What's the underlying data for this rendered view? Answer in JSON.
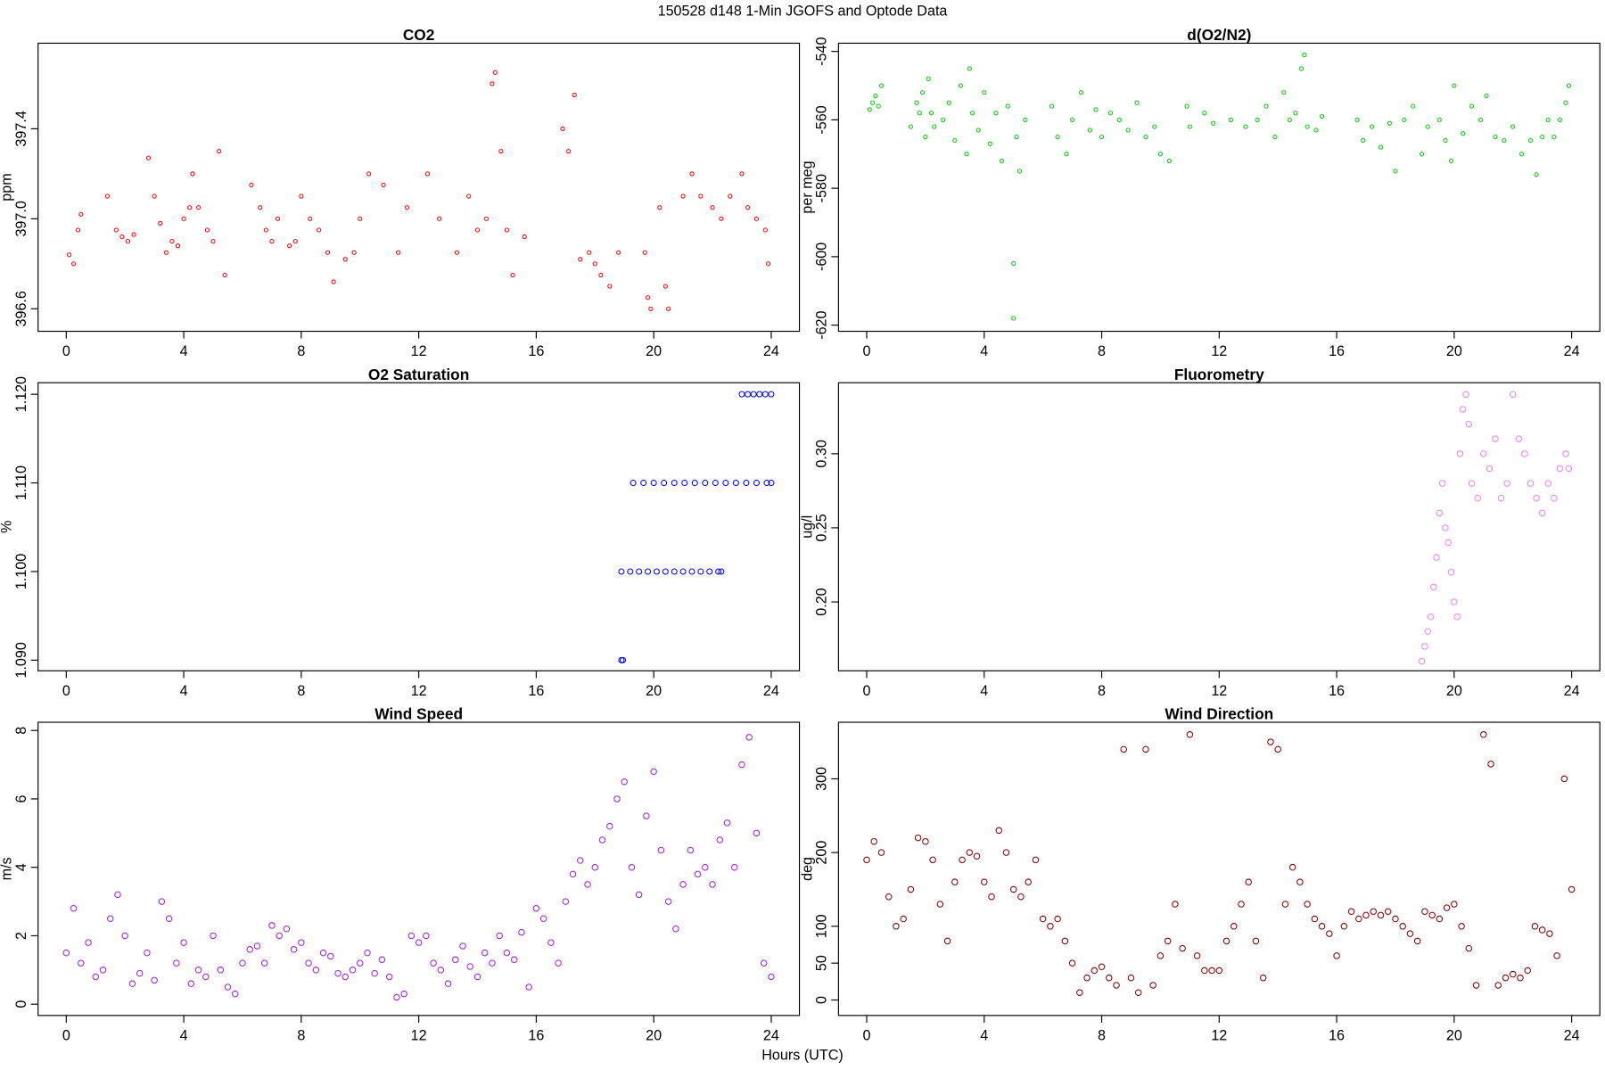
{
  "title": "150528   d148   1-Min  JGOFS and Optode Data",
  "x_label": "Hours (UTC)",
  "chart_data": [
    {
      "type": "scatter",
      "title": "CO2",
      "y_label": "ppm",
      "color": "#ff0000",
      "xlim": [
        -0.96,
        24.96
      ],
      "xticks": [
        0,
        4,
        8,
        12,
        16,
        20,
        24
      ],
      "ylim": [
        396.5,
        397.78
      ],
      "yticks": [
        396.6,
        {
          "value": 397.0,
          "label": "397.0"
        },
        397.4
      ],
      "x": [
        0.1,
        0.25,
        0.4,
        0.5,
        1.4,
        1.7,
        1.9,
        2.1,
        2.3,
        2.8,
        3.0,
        3.2,
        3.4,
        3.6,
        3.8,
        4.0,
        4.2,
        4.3,
        4.5,
        4.8,
        5.0,
        5.2,
        5.4,
        6.3,
        6.6,
        6.8,
        7.0,
        7.2,
        7.6,
        7.8,
        8.0,
        8.3,
        8.6,
        8.9,
        9.1,
        9.5,
        9.8,
        10.0,
        10.3,
        10.8,
        11.3,
        11.6,
        12.3,
        12.7,
        13.3,
        13.7,
        14.0,
        14.3,
        14.5,
        14.6,
        14.8,
        15.0,
        15.2,
        15.6,
        16.9,
        17.1,
        17.3,
        17.5,
        17.8,
        18.0,
        18.2,
        18.5,
        18.8,
        19.7,
        19.8,
        19.9,
        20.2,
        20.4,
        20.5,
        21.0,
        21.3,
        21.6,
        22.0,
        22.3,
        22.6,
        23.0,
        23.2,
        23.5,
        23.8,
        23.9
      ],
      "values": [
        396.84,
        396.8,
        396.95,
        397.02,
        397.1,
        396.95,
        396.92,
        396.9,
        396.93,
        397.27,
        397.1,
        396.98,
        396.85,
        396.9,
        396.88,
        397.0,
        397.05,
        397.2,
        397.05,
        396.95,
        396.9,
        397.3,
        396.75,
        397.15,
        397.05,
        396.95,
        396.9,
        397.0,
        396.88,
        396.9,
        397.1,
        397.0,
        396.95,
        396.85,
        396.72,
        396.82,
        396.85,
        397.0,
        397.2,
        397.15,
        396.85,
        397.05,
        397.2,
        397.0,
        396.85,
        397.1,
        396.95,
        397.0,
        397.6,
        397.65,
        397.3,
        396.95,
        396.75,
        396.92,
        397.4,
        397.3,
        397.55,
        396.82,
        396.85,
        396.8,
        396.75,
        396.7,
        396.85,
        396.85,
        396.65,
        396.6,
        397.05,
        396.7,
        396.6,
        397.1,
        397.2,
        397.1,
        397.05,
        397.0,
        397.1,
        397.2,
        397.05,
        397.0,
        396.95,
        396.8
      ]
    },
    {
      "type": "scatter",
      "title": "d(O2/N2)",
      "y_label": "per meg",
      "color": "#00cc00",
      "xlim": [
        -0.96,
        24.96
      ],
      "xticks": [
        0,
        4,
        8,
        12,
        16,
        20,
        24
      ],
      "ylim": [
        -621.8,
        -537.6
      ],
      "yticks": [
        -620,
        -600,
        -580,
        -560,
        -540
      ],
      "x": [
        0.1,
        0.2,
        0.3,
        0.4,
        0.5,
        1.5,
        1.7,
        1.8,
        1.9,
        2.0,
        2.1,
        2.2,
        2.3,
        2.6,
        2.8,
        3.0,
        3.2,
        3.4,
        3.5,
        3.6,
        3.8,
        4.0,
        4.2,
        4.4,
        4.6,
        4.8,
        5.0,
        5.0,
        5.1,
        5.2,
        5.4,
        6.3,
        6.5,
        6.8,
        7.0,
        7.3,
        7.6,
        7.8,
        8.0,
        8.3,
        8.6,
        8.9,
        9.2,
        9.5,
        9.8,
        10.0,
        10.3,
        10.9,
        11.0,
        11.5,
        11.8,
        12.4,
        12.9,
        13.3,
        13.6,
        13.9,
        14.2,
        14.4,
        14.6,
        14.8,
        14.9,
        15.0,
        15.3,
        15.5,
        16.7,
        16.9,
        17.2,
        17.5,
        17.8,
        18.0,
        18.3,
        18.6,
        18.9,
        19.1,
        19.5,
        19.7,
        19.9,
        20.0,
        20.3,
        20.6,
        20.9,
        21.1,
        21.4,
        21.7,
        22.0,
        22.3,
        22.6,
        22.8,
        23.0,
        23.2,
        23.4,
        23.6,
        23.8,
        23.9
      ],
      "values": [
        -557,
        -555,
        -553,
        -556,
        -550,
        -562,
        -555,
        -558,
        -552,
        -565,
        -548,
        -558,
        -562,
        -560,
        -555,
        -566,
        -550,
        -570,
        -545,
        -558,
        -563,
        -552,
        -567,
        -558,
        -572,
        -556,
        -602,
        -618,
        -565,
        -575,
        -560,
        -556,
        -565,
        -570,
        -560,
        -552,
        -563,
        -557,
        -565,
        -558,
        -560,
        -563,
        -555,
        -565,
        -562,
        -570,
        -572,
        -556,
        -562,
        -558,
        -561,
        -560,
        -562,
        -560,
        -556,
        -565,
        -552,
        -560,
        -558,
        -545,
        -541,
        -562,
        -563,
        -559,
        -560,
        -566,
        -562,
        -568,
        -561,
        -575,
        -560,
        -556,
        -570,
        -562,
        -560,
        -566,
        -572,
        -550,
        -564,
        -556,
        -560,
        -553,
        -565,
        -566,
        -562,
        -570,
        -566,
        -576,
        -565,
        -560,
        -565,
        -560,
        -555,
        -550
      ]
    },
    {
      "type": "scatter",
      "title": "O2 Saturation",
      "y_label": "%",
      "color": "#0000ff",
      "xlim": [
        -0.96,
        24.96
      ],
      "xticks": [
        0,
        4,
        8,
        12,
        16,
        20,
        24
      ],
      "ylim": [
        1.0888,
        1.1213
      ],
      "yticks": [
        {
          "value": 1.09,
          "label": "1.090"
        },
        {
          "value": 1.1,
          "label": "1.100"
        },
        {
          "value": 1.11,
          "label": "1.110"
        },
        {
          "value": 1.12,
          "label": "1.120"
        }
      ],
      "x": [
        18.9,
        18.95,
        18.9,
        19.2,
        19.5,
        19.8,
        20.1,
        20.4,
        20.7,
        21.0,
        21.3,
        21.6,
        21.9,
        22.2,
        22.3,
        19.3,
        19.65,
        20.0,
        20.35,
        20.7,
        21.05,
        21.4,
        21.75,
        22.1,
        22.45,
        22.8,
        23.15,
        23.5,
        23.85,
        24.0,
        23.0,
        23.2,
        23.4,
        23.6,
        23.8,
        24.0
      ],
      "values": [
        1.09,
        1.09,
        1.1,
        1.1,
        1.1,
        1.1,
        1.1,
        1.1,
        1.1,
        1.1,
        1.1,
        1.1,
        1.1,
        1.1,
        1.1,
        1.11,
        1.11,
        1.11,
        1.11,
        1.11,
        1.11,
        1.11,
        1.11,
        1.11,
        1.11,
        1.11,
        1.11,
        1.11,
        1.11,
        1.11,
        1.12,
        1.12,
        1.12,
        1.12,
        1.12,
        1.12
      ]
    },
    {
      "type": "scatter",
      "title": "Fluorometry",
      "y_label": "ug/l",
      "color": "#ee82ee",
      "xlim": [
        -0.96,
        24.96
      ],
      "xticks": [
        0,
        4,
        8,
        12,
        16,
        20,
        24
      ],
      "ylim": [
        0.1535,
        0.3479
      ],
      "yticks": [
        {
          "value": 0.2,
          "label": "0.20"
        },
        {
          "value": 0.25,
          "label": "0.25"
        },
        {
          "value": 0.3,
          "label": "0.30"
        }
      ],
      "x": [
        18.9,
        19.0,
        19.1,
        19.2,
        19.3,
        19.4,
        19.5,
        19.6,
        19.7,
        19.8,
        19.9,
        20.0,
        20.1,
        20.2,
        20.3,
        20.4,
        20.5,
        20.6,
        20.8,
        21.0,
        21.2,
        21.4,
        21.6,
        21.8,
        22.0,
        22.2,
        22.4,
        22.6,
        22.8,
        23.0,
        23.2,
        23.4,
        23.6,
        23.8,
        23.9
      ],
      "values": [
        0.16,
        0.17,
        0.18,
        0.19,
        0.21,
        0.23,
        0.26,
        0.28,
        0.25,
        0.24,
        0.22,
        0.2,
        0.19,
        0.3,
        0.33,
        0.34,
        0.32,
        0.28,
        0.27,
        0.3,
        0.29,
        0.31,
        0.27,
        0.28,
        0.34,
        0.31,
        0.3,
        0.28,
        0.27,
        0.26,
        0.28,
        0.27,
        0.29,
        0.3,
        0.29
      ]
    },
    {
      "type": "scatter",
      "title": "Wind Speed",
      "y_label": "m/s",
      "color": "#a020f0",
      "xlim": [
        -0.96,
        24.96
      ],
      "xticks": [
        0,
        4,
        8,
        12,
        16,
        20,
        24
      ],
      "ylim": [
        -0.33,
        8.24
      ],
      "yticks": [
        0,
        2,
        4,
        6,
        8
      ],
      "x": [
        0,
        0.25,
        0.5,
        0.75,
        1.0,
        1.25,
        1.5,
        1.75,
        2.0,
        2.25,
        2.5,
        2.75,
        3.0,
        3.25,
        3.5,
        3.75,
        4.0,
        4.25,
        4.5,
        4.75,
        5.0,
        5.25,
        5.5,
        5.75,
        6.0,
        6.25,
        6.5,
        6.75,
        7.0,
        7.25,
        7.5,
        7.75,
        8.0,
        8.25,
        8.5,
        8.75,
        9.0,
        9.25,
        9.5,
        9.75,
        10.0,
        10.25,
        10.5,
        10.75,
        11.0,
        11.25,
        11.5,
        11.75,
        12.0,
        12.25,
        12.5,
        12.75,
        13.0,
        13.25,
        13.5,
        13.75,
        14.0,
        14.25,
        14.5,
        14.75,
        15.0,
        15.25,
        15.5,
        15.75,
        16.0,
        16.25,
        16.5,
        16.75,
        17.0,
        17.25,
        17.5,
        17.75,
        18.0,
        18.25,
        18.5,
        18.75,
        19.0,
        19.25,
        19.5,
        19.75,
        20.0,
        20.25,
        20.5,
        20.75,
        21.0,
        21.25,
        21.5,
        21.75,
        22.0,
        22.25,
        22.5,
        22.75,
        23.0,
        23.25,
        23.5,
        23.75,
        24.0
      ],
      "values": [
        1.5,
        2.8,
        1.2,
        1.8,
        0.8,
        1.0,
        2.5,
        3.2,
        2.0,
        0.6,
        0.9,
        1.5,
        0.7,
        3.0,
        2.5,
        1.2,
        1.8,
        0.6,
        1.0,
        0.8,
        2.0,
        1.0,
        0.5,
        0.3,
        1.2,
        1.6,
        1.7,
        1.2,
        2.3,
        2.0,
        2.2,
        1.6,
        1.8,
        1.2,
        1.0,
        1.5,
        1.4,
        0.9,
        0.8,
        1.0,
        1.2,
        1.5,
        0.9,
        1.3,
        0.8,
        0.2,
        0.3,
        2.0,
        1.8,
        2.0,
        1.2,
        1.0,
        0.6,
        1.3,
        1.7,
        1.1,
        0.8,
        1.5,
        1.2,
        2.0,
        1.5,
        1.3,
        2.1,
        0.5,
        2.8,
        2.5,
        1.8,
        1.2,
        3.0,
        3.8,
        4.2,
        3.5,
        4.0,
        4.8,
        5.2,
        6.0,
        6.5,
        4.0,
        3.2,
        5.5,
        6.8,
        4.5,
        3.0,
        2.2,
        3.5,
        4.5,
        3.8,
        4.0,
        3.5,
        4.8,
        5.3,
        4.0,
        7.0,
        7.8,
        5.0,
        1.2,
        0.8
      ]
    },
    {
      "type": "scatter",
      "title": "Wind Direction",
      "y_label": "deg",
      "color": "#8b0000",
      "xlim": [
        -0.96,
        24.96
      ],
      "xticks": [
        0,
        4,
        8,
        12,
        16,
        20,
        24
      ],
      "ylim": [
        -21,
        376.7
      ],
      "yticks": [
        0,
        50,
        100,
        200,
        300
      ],
      "x": [
        0,
        0.25,
        0.5,
        0.75,
        1.0,
        1.25,
        1.5,
        1.75,
        2.0,
        2.25,
        2.5,
        2.75,
        3.0,
        3.25,
        3.5,
        3.75,
        4.0,
        4.25,
        4.5,
        4.75,
        5.0,
        5.25,
        5.5,
        5.75,
        6.0,
        6.25,
        6.5,
        6.75,
        7.0,
        7.25,
        7.5,
        7.75,
        8.0,
        8.25,
        8.5,
        8.75,
        9.0,
        9.25,
        9.5,
        9.75,
        10.0,
        10.25,
        10.5,
        10.75,
        11.0,
        11.25,
        11.5,
        11.75,
        12.0,
        12.25,
        12.5,
        12.75,
        13.0,
        13.25,
        13.5,
        13.75,
        14.0,
        14.25,
        14.5,
        14.75,
        15.0,
        15.25,
        15.5,
        15.75,
        16.0,
        16.25,
        16.5,
        16.75,
        17.0,
        17.25,
        17.5,
        17.75,
        18.0,
        18.25,
        18.5,
        18.75,
        19.0,
        19.25,
        19.5,
        19.75,
        20.0,
        20.25,
        20.5,
        20.75,
        21.0,
        21.25,
        21.5,
        21.75,
        22.0,
        22.25,
        22.5,
        22.75,
        23.0,
        23.25,
        23.5,
        23.75,
        24.0
      ],
      "values": [
        190,
        215,
        200,
        140,
        100,
        110,
        150,
        220,
        215,
        190,
        130,
        80,
        160,
        190,
        200,
        195,
        160,
        140,
        230,
        200,
        150,
        140,
        160,
        190,
        110,
        100,
        110,
        80,
        50,
        10,
        30,
        40,
        45,
        30,
        20,
        340,
        30,
        10,
        340,
        20,
        60,
        80,
        130,
        70,
        360,
        60,
        40,
        40,
        40,
        80,
        100,
        130,
        160,
        80,
        30,
        350,
        340,
        130,
        180,
        160,
        130,
        110,
        100,
        90,
        60,
        100,
        120,
        110,
        115,
        120,
        115,
        120,
        110,
        100,
        90,
        80,
        120,
        115,
        110,
        125,
        130,
        100,
        70,
        20,
        360,
        320,
        20,
        30,
        35,
        30,
        40,
        100,
        95,
        90,
        60,
        300,
        150
      ]
    }
  ]
}
